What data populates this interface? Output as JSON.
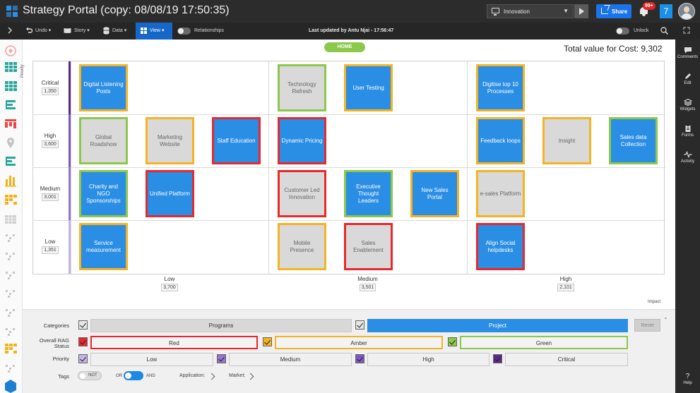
{
  "header": {
    "title": "Strategy Portal (copy: 08/08/19 17:50:35)",
    "market_value": "Innovation",
    "share_label": "Share",
    "notification_count": "99+",
    "tile_number": "7"
  },
  "toolbar": {
    "undo_label": "Undo",
    "story_label": "Story",
    "data_label": "Data",
    "view_label": "View",
    "relationships_label": "Relationships",
    "last_updated": "Last updated by Antu Njai - 17:56:47",
    "unlock_label": "Unlock"
  },
  "rightbar": {
    "items": [
      "Comments",
      "Edit",
      "Widgets",
      "Forms",
      "Activity"
    ],
    "help_label": "Help"
  },
  "main": {
    "home_label": "HOME",
    "total_text": "Total value for Cost: 9,302",
    "y_axis_label": "Priority",
    "x_axis_label": "Impact"
  },
  "matrix": {
    "rows": [
      {
        "label": "Critical",
        "count": "1,350"
      },
      {
        "label": "High",
        "count": "3,600"
      },
      {
        "label": "Medium",
        "count": "3,001"
      },
      {
        "label": "Low",
        "count": "1,351"
      }
    ],
    "columns": [
      {
        "label": "Low",
        "count": "3,700"
      },
      {
        "label": "Medium",
        "count": "3,501"
      },
      {
        "label": "High",
        "count": "2,101"
      }
    ],
    "cards": [
      {
        "name": "Digital Listening Posts",
        "type": "project",
        "rag": "amber",
        "priority": "Critical",
        "impact": "Low",
        "slot": 0
      },
      {
        "name": "Technology Refresh",
        "type": "program",
        "rag": "green",
        "priority": "Critical",
        "impact": "Medium",
        "slot": 0
      },
      {
        "name": "User Testing",
        "type": "project",
        "rag": "amber",
        "priority": "Critical",
        "impact": "Medium",
        "slot": 1
      },
      {
        "name": "Digitise top 10 Processes",
        "type": "project",
        "rag": "amber",
        "priority": "Critical",
        "impact": "High",
        "slot": 0
      },
      {
        "name": "Global Roadshow",
        "type": "program",
        "rag": "green",
        "priority": "High",
        "impact": "Low",
        "slot": 0
      },
      {
        "name": "Marketing Website",
        "type": "program",
        "rag": "amber",
        "priority": "High",
        "impact": "Low",
        "slot": 1
      },
      {
        "name": "Staff Education",
        "type": "project",
        "rag": "red",
        "priority": "High",
        "impact": "Low",
        "slot": 2
      },
      {
        "name": "Dynamic Pricing",
        "type": "project",
        "rag": "red",
        "priority": "High",
        "impact": "Medium",
        "slot": 0
      },
      {
        "name": "Feedback loops",
        "type": "project",
        "rag": "amber",
        "priority": "High",
        "impact": "High",
        "slot": 0
      },
      {
        "name": "Insight",
        "type": "program",
        "rag": "amber",
        "priority": "High",
        "impact": "High",
        "slot": 1
      },
      {
        "name": "Sales data Collection",
        "type": "project",
        "rag": "green",
        "priority": "High",
        "impact": "High",
        "slot": 2
      },
      {
        "name": "Charity and NGO Sponsorships",
        "type": "project",
        "rag": "green",
        "priority": "Medium",
        "impact": "Low",
        "slot": 0
      },
      {
        "name": "Unified Platform",
        "type": "project",
        "rag": "red",
        "priority": "Medium",
        "impact": "Low",
        "slot": 1
      },
      {
        "name": "Customer Led Innovation",
        "type": "program",
        "rag": "red",
        "priority": "Medium",
        "impact": "Medium",
        "slot": 0
      },
      {
        "name": "Executive Thought Leaders",
        "type": "project",
        "rag": "green",
        "priority": "Medium",
        "impact": "Medium",
        "slot": 1
      },
      {
        "name": "New Sales Portal",
        "type": "project",
        "rag": "amber",
        "priority": "Medium",
        "impact": "Medium",
        "slot": 2
      },
      {
        "name": "e-sales Platform",
        "type": "program",
        "rag": "amber",
        "priority": "Medium",
        "impact": "High",
        "slot": 0
      },
      {
        "name": "Service measurement",
        "type": "project",
        "rag": "amber",
        "priority": "Low",
        "impact": "Low",
        "slot": 0
      },
      {
        "name": "Mobile Presence",
        "type": "program",
        "rag": "amber",
        "priority": "Low",
        "impact": "Medium",
        "slot": 0
      },
      {
        "name": "Sales Enablement",
        "type": "program",
        "rag": "red",
        "priority": "Low",
        "impact": "Medium",
        "slot": 1
      },
      {
        "name": "Align Social helpdesks",
        "type": "project",
        "rag": "red",
        "priority": "Low",
        "impact": "High",
        "slot": 0
      }
    ]
  },
  "filters": {
    "categories_label": "Categories",
    "categories": [
      "Programs",
      "Project"
    ],
    "rag_label": "Overall RAG Status",
    "rag": [
      "Red",
      "Amber",
      "Green"
    ],
    "priority_label": "Priority",
    "priority": [
      "Low",
      "Medium",
      "High",
      "Critical"
    ],
    "tags_label": "Tags",
    "not_label": "NOT",
    "or_label": "OR",
    "and_label": "AND",
    "application_label": "Application:",
    "market_label": "Market:",
    "reset_label": "Reset"
  },
  "colors": {
    "red": "#e8282c",
    "amber": "#f5b324",
    "green": "#8cc84b",
    "project": "#2a8ee4",
    "program": "#d9d9d9",
    "critical_bar": "#5b2a86",
    "high_bar": "#7e57c2",
    "medium_bar": "#9575cd",
    "low_bar": "#c5b3e6"
  }
}
